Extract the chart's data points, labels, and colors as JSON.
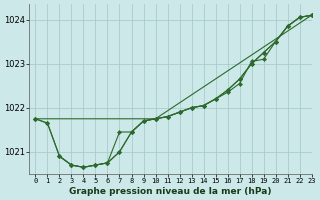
{
  "title": "Graphe pression niveau de la mer (hPa)",
  "background_color": "#cce8e8",
  "grid_color": "#aacccc",
  "line_color": "#2d6a2d",
  "xlim": [
    -0.5,
    23
  ],
  "ylim": [
    1020.5,
    1024.35
  ],
  "yticks": [
    1021,
    1022,
    1023,
    1024
  ],
  "xticks": [
    0,
    1,
    2,
    3,
    4,
    5,
    6,
    7,
    8,
    9,
    10,
    11,
    12,
    13,
    14,
    15,
    16,
    17,
    18,
    19,
    20,
    21,
    22,
    23
  ],
  "line1_x": [
    0,
    1,
    2,
    3,
    4,
    5,
    6,
    7,
    8,
    9,
    10,
    11,
    12,
    13,
    14,
    15,
    16,
    17,
    18,
    19,
    20,
    21,
    22,
    23
  ],
  "line1_y": [
    1021.75,
    1021.65,
    1020.9,
    1020.7,
    1020.65,
    1020.7,
    1020.75,
    1021.45,
    1021.45,
    1021.7,
    1021.75,
    1021.8,
    1021.9,
    1022.0,
    1022.05,
    1022.2,
    1022.35,
    1022.55,
    1023.05,
    1023.1,
    1023.5,
    1023.85,
    1024.05,
    1024.1
  ],
  "line2_x": [
    0,
    1,
    2,
    3,
    4,
    5,
    6,
    7,
    8,
    9,
    10,
    11,
    12,
    13,
    14,
    15,
    16,
    17,
    18,
    19,
    20,
    21,
    22,
    23
  ],
  "line2_y": [
    1021.75,
    1021.65,
    1020.9,
    1020.7,
    1020.65,
    1020.7,
    1020.75,
    1021.0,
    1021.45,
    1021.7,
    1021.75,
    1021.8,
    1021.9,
    1022.0,
    1022.05,
    1022.2,
    1022.4,
    1022.65,
    1023.0,
    1023.25,
    1023.5,
    1023.85,
    1024.05,
    1024.1
  ],
  "line3_x": [
    0,
    10,
    23
  ],
  "line3_y": [
    1021.75,
    1021.75,
    1024.1
  ],
  "line4_x": [
    2,
    3,
    4,
    5,
    6,
    7,
    8,
    9,
    10,
    11,
    12,
    13,
    14,
    15,
    16,
    17,
    18,
    19,
    20,
    21,
    22,
    23
  ],
  "line4_y": [
    1020.9,
    1020.7,
    1020.65,
    1020.7,
    1020.75,
    1021.0,
    1021.45,
    1021.7,
    1021.75,
    1021.8,
    1021.9,
    1022.0,
    1022.05,
    1022.2,
    1022.4,
    1022.65,
    1023.0,
    1023.25,
    1023.5,
    1023.85,
    1024.05,
    1024.1
  ]
}
